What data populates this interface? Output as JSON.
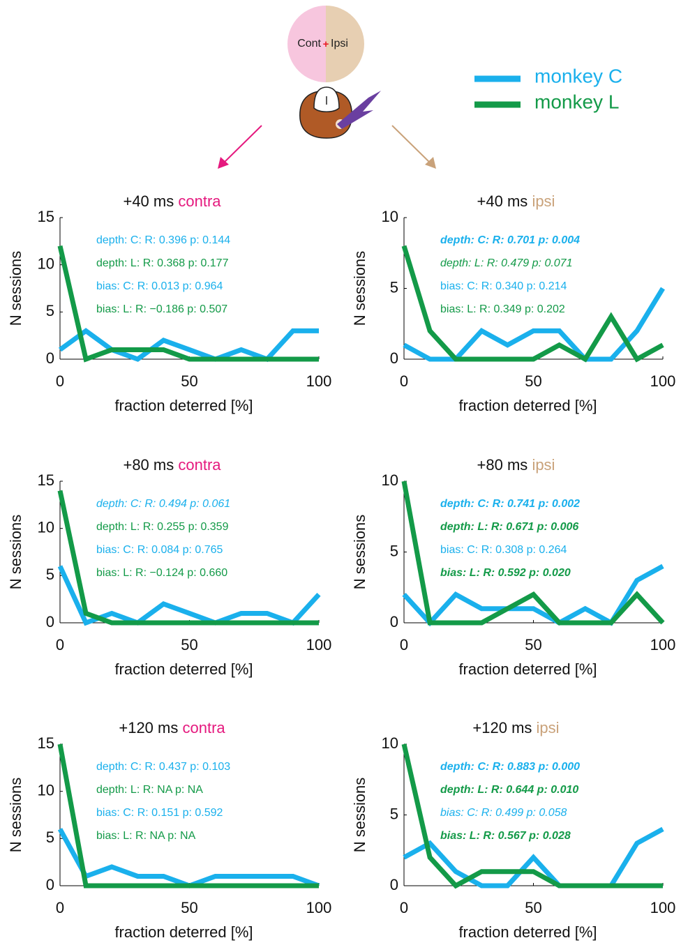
{
  "diagram": {
    "left_label": "Cont",
    "center_mark": "+",
    "right_label": "Ipsi"
  },
  "chart_data": [
    {
      "type": "line",
      "title": "+40 ms",
      "condition": "contra",
      "condition_color": "#e5197e",
      "xlabel": "fraction deterred [%]",
      "ylabel": "N sessions",
      "x": [
        0,
        10,
        20,
        30,
        40,
        50,
        60,
        70,
        80,
        90,
        100
      ],
      "xlim": [
        0,
        100
      ],
      "xticks": [
        0,
        50,
        100
      ],
      "ylim": [
        0,
        15
      ],
      "yticks": [
        0,
        5,
        10,
        15
      ],
      "series": [
        {
          "name": "monkey C",
          "color": "#1ab0ec",
          "values": [
            1,
            3,
            1,
            0,
            2,
            1,
            0,
            1,
            0,
            3,
            3
          ]
        },
        {
          "name": "monkey L",
          "color": "#139a48",
          "values": [
            12,
            0,
            1,
            1,
            1,
            0,
            0,
            0,
            0,
            0,
            0
          ]
        }
      ],
      "annotations": [
        {
          "text": "depth: C: R: 0.396 p: 0.144",
          "color": "#1ab0ec",
          "style": "normal"
        },
        {
          "text": "depth: L: R: 0.368 p: 0.177",
          "color": "#139a48",
          "style": "normal"
        },
        {
          "text": "bias: C: R: 0.013 p: 0.964",
          "color": "#1ab0ec",
          "style": "normal"
        },
        {
          "text": "bias: L: R: −0.186 p: 0.507",
          "color": "#139a48",
          "style": "normal"
        }
      ]
    },
    {
      "type": "line",
      "title": "+40 ms",
      "condition": "ipsi",
      "condition_color": "#c9a27a",
      "xlabel": "fraction deterred [%]",
      "ylabel": "N sessions",
      "x": [
        0,
        10,
        20,
        30,
        40,
        50,
        60,
        70,
        80,
        90,
        100
      ],
      "xlim": [
        0,
        100
      ],
      "xticks": [
        0,
        50,
        100
      ],
      "ylim": [
        0,
        10
      ],
      "yticks": [
        0,
        5,
        10
      ],
      "series": [
        {
          "name": "monkey C",
          "color": "#1ab0ec",
          "values": [
            1,
            0,
            0,
            2,
            1,
            2,
            2,
            0,
            0,
            2,
            5
          ]
        },
        {
          "name": "monkey L",
          "color": "#139a48",
          "values": [
            8,
            2,
            0,
            0,
            0,
            0,
            1,
            0,
            3,
            0,
            1
          ]
        }
      ],
      "annotations": [
        {
          "text": "depth: C: R: 0.701 p: 0.004",
          "color": "#1ab0ec",
          "style": "bold-italic"
        },
        {
          "text": "depth: L: R: 0.479 p: 0.071",
          "color": "#139a48",
          "style": "italic"
        },
        {
          "text": "bias: C: R: 0.340 p: 0.214",
          "color": "#1ab0ec",
          "style": "normal"
        },
        {
          "text": "bias: L: R: 0.349 p: 0.202",
          "color": "#139a48",
          "style": "normal"
        }
      ]
    },
    {
      "type": "line",
      "title": "+80 ms",
      "condition": "contra",
      "condition_color": "#e5197e",
      "xlabel": "fraction deterred [%]",
      "ylabel": "N sessions",
      "x": [
        0,
        10,
        20,
        30,
        40,
        50,
        60,
        70,
        80,
        90,
        100
      ],
      "xlim": [
        0,
        100
      ],
      "xticks": [
        0,
        50,
        100
      ],
      "ylim": [
        0,
        15
      ],
      "yticks": [
        0,
        5,
        10,
        15
      ],
      "series": [
        {
          "name": "monkey C",
          "color": "#1ab0ec",
          "values": [
            6,
            0,
            1,
            0,
            2,
            1,
            0,
            1,
            1,
            0,
            3
          ]
        },
        {
          "name": "monkey L",
          "color": "#139a48",
          "values": [
            14,
            1,
            0,
            0,
            0,
            0,
            0,
            0,
            0,
            0,
            0
          ]
        }
      ],
      "annotations": [
        {
          "text": "depth: C: R: 0.494 p: 0.061",
          "color": "#1ab0ec",
          "style": "italic"
        },
        {
          "text": "depth: L: R: 0.255 p: 0.359",
          "color": "#139a48",
          "style": "normal"
        },
        {
          "text": "bias: C: R: 0.084 p: 0.765",
          "color": "#1ab0ec",
          "style": "normal"
        },
        {
          "text": "bias: L: R: −0.124 p: 0.660",
          "color": "#139a48",
          "style": "normal"
        }
      ]
    },
    {
      "type": "line",
      "title": "+80 ms",
      "condition": "ipsi",
      "condition_color": "#c9a27a",
      "xlabel": "fraction deterred [%]",
      "ylabel": "N sessions",
      "x": [
        0,
        10,
        20,
        30,
        40,
        50,
        60,
        70,
        80,
        90,
        100
      ],
      "xlim": [
        0,
        100
      ],
      "xticks": [
        0,
        50,
        100
      ],
      "ylim": [
        0,
        10
      ],
      "yticks": [
        0,
        5,
        10
      ],
      "series": [
        {
          "name": "monkey C",
          "color": "#1ab0ec",
          "values": [
            2,
            0,
            2,
            1,
            1,
            1,
            0,
            1,
            0,
            3,
            4
          ]
        },
        {
          "name": "monkey L",
          "color": "#139a48",
          "values": [
            10,
            0,
            0,
            0,
            1,
            2,
            0,
            0,
            0,
            2,
            0
          ]
        }
      ],
      "annotations": [
        {
          "text": "depth: C: R: 0.741 p: 0.002",
          "color": "#1ab0ec",
          "style": "bold-italic"
        },
        {
          "text": "depth: L: R: 0.671 p: 0.006",
          "color": "#139a48",
          "style": "bold-italic"
        },
        {
          "text": "bias: C: R: 0.308 p: 0.264",
          "color": "#1ab0ec",
          "style": "normal"
        },
        {
          "text": "bias: L: R: 0.592 p: 0.020",
          "color": "#139a48",
          "style": "bold-italic"
        }
      ]
    },
    {
      "type": "line",
      "title": "+120 ms",
      "condition": "contra",
      "condition_color": "#e5197e",
      "xlabel": "fraction deterred [%]",
      "ylabel": "N sessions",
      "x": [
        0,
        10,
        20,
        30,
        40,
        50,
        60,
        70,
        80,
        90,
        100
      ],
      "xlim": [
        0,
        100
      ],
      "xticks": [
        0,
        50,
        100
      ],
      "ylim": [
        0,
        15
      ],
      "yticks": [
        0,
        5,
        10,
        15
      ],
      "series": [
        {
          "name": "monkey C",
          "color": "#1ab0ec",
          "values": [
            6,
            1,
            2,
            1,
            1,
            0,
            1,
            1,
            1,
            1,
            0
          ]
        },
        {
          "name": "monkey L",
          "color": "#139a48",
          "values": [
            15,
            0,
            0,
            0,
            0,
            0,
            0,
            0,
            0,
            0,
            0
          ]
        }
      ],
      "annotations": [
        {
          "text": "depth: C: R: 0.437 p: 0.103",
          "color": "#1ab0ec",
          "style": "normal"
        },
        {
          "text": "depth: L: R: NA p: NA",
          "color": "#139a48",
          "style": "normal"
        },
        {
          "text": "bias: C: R: 0.151 p: 0.592",
          "color": "#1ab0ec",
          "style": "normal"
        },
        {
          "text": "bias: L: R: NA p: NA",
          "color": "#139a48",
          "style": "normal"
        }
      ]
    },
    {
      "type": "line",
      "title": "+120 ms",
      "condition": "ipsi",
      "condition_color": "#c9a27a",
      "xlabel": "fraction deterred [%]",
      "ylabel": "N sessions",
      "x": [
        0,
        10,
        20,
        30,
        40,
        50,
        60,
        70,
        80,
        90,
        100
      ],
      "xlim": [
        0,
        100
      ],
      "xticks": [
        0,
        50,
        100
      ],
      "ylim": [
        0,
        10
      ],
      "yticks": [
        0,
        5,
        10
      ],
      "series": [
        {
          "name": "monkey C",
          "color": "#1ab0ec",
          "values": [
            2,
            3,
            1,
            0,
            0,
            2,
            0,
            0,
            0,
            3,
            4
          ]
        },
        {
          "name": "monkey L",
          "color": "#139a48",
          "values": [
            10,
            2,
            0,
            1,
            1,
            1,
            0,
            0,
            0,
            0,
            0
          ]
        }
      ],
      "annotations": [
        {
          "text": "depth: C: R: 0.883 p: 0.000",
          "color": "#1ab0ec",
          "style": "bold-italic"
        },
        {
          "text": "depth: L: R: 0.644 p: 0.010",
          "color": "#139a48",
          "style": "bold-italic"
        },
        {
          "text": "bias: C: R: 0.499 p: 0.058",
          "color": "#1ab0ec",
          "style": "italic"
        },
        {
          "text": "bias: L: R: 0.567 p: 0.028",
          "color": "#139a48",
          "style": "bold-italic"
        }
      ]
    }
  ]
}
